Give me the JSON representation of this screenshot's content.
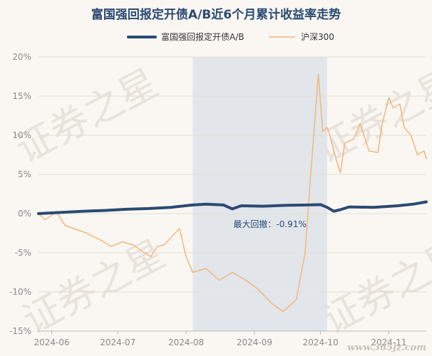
{
  "chart_data": {
    "type": "line",
    "title": "富国强回报定开债A/B近6个月累计收益率走势",
    "xlabel": "",
    "ylabel": "",
    "ylim": [
      -15,
      20
    ],
    "yticks": [
      "-15%",
      "-10%",
      "-5%",
      "0%",
      "5%",
      "10%",
      "15%",
      "20%"
    ],
    "ytick_values": [
      -15,
      -10,
      -5,
      0,
      5,
      10,
      15,
      20
    ],
    "xlim": [
      "2024-05-26",
      "2024-11-18"
    ],
    "xticks": [
      {
        "date": "2024-06-01",
        "label": "2024-06"
      },
      {
        "date": "2024-07-01",
        "label": "2024-07"
      },
      {
        "date": "2024-08-01",
        "label": "2024-08"
      },
      {
        "date": "2024-09-01",
        "label": "2024-09"
      },
      {
        "date": "2024-10-01",
        "label": "2024-10"
      },
      {
        "date": "2024-11-01",
        "label": "2024-11"
      }
    ],
    "grid": "horizontal",
    "legend_placement": "top",
    "shaded_region": {
      "start": "2024-08-04",
      "end": "2024-10-04",
      "label": "最大回撤：-0.91%"
    },
    "series": [
      {
        "name": "富国强回报定开债A/B",
        "color": "#2b4a73",
        "points": [
          [
            "2024-05-26",
            0.0
          ],
          [
            "2024-06-05",
            0.15
          ],
          [
            "2024-06-15",
            0.3
          ],
          [
            "2024-06-25",
            0.4
          ],
          [
            "2024-07-05",
            0.55
          ],
          [
            "2024-07-15",
            0.65
          ],
          [
            "2024-07-25",
            0.8
          ],
          [
            "2024-08-04",
            1.1
          ],
          [
            "2024-08-10",
            1.2
          ],
          [
            "2024-08-18",
            1.1
          ],
          [
            "2024-08-22",
            0.6
          ],
          [
            "2024-08-26",
            1.0
          ],
          [
            "2024-09-05",
            0.95
          ],
          [
            "2024-09-15",
            1.05
          ],
          [
            "2024-09-25",
            1.1
          ],
          [
            "2024-10-01",
            1.15
          ],
          [
            "2024-10-04",
            0.8
          ],
          [
            "2024-10-07",
            0.3
          ],
          [
            "2024-10-10",
            0.5
          ],
          [
            "2024-10-14",
            0.85
          ],
          [
            "2024-10-25",
            0.8
          ],
          [
            "2024-11-05",
            1.0
          ],
          [
            "2024-11-12",
            1.2
          ],
          [
            "2024-11-18",
            1.5
          ]
        ]
      },
      {
        "name": "沪深300",
        "color": "#f2b67a",
        "points": [
          [
            "2024-05-26",
            0.0
          ],
          [
            "2024-05-29",
            -0.8
          ],
          [
            "2024-06-01",
            -0.2
          ],
          [
            "2024-06-03",
            0.3
          ],
          [
            "2024-06-07",
            -1.5
          ],
          [
            "2024-06-12",
            -2.0
          ],
          [
            "2024-06-17",
            -2.5
          ],
          [
            "2024-06-24",
            -3.5
          ],
          [
            "2024-06-28",
            -4.2
          ],
          [
            "2024-07-03",
            -3.6
          ],
          [
            "2024-07-08",
            -4.0
          ],
          [
            "2024-07-12",
            -4.8
          ],
          [
            "2024-07-16",
            -5.5
          ],
          [
            "2024-07-19",
            -4.2
          ],
          [
            "2024-07-22",
            -4.0
          ],
          [
            "2024-07-26",
            -2.8
          ],
          [
            "2024-07-29",
            -1.9
          ],
          [
            "2024-08-01",
            -5.5
          ],
          [
            "2024-08-04",
            -7.5
          ],
          [
            "2024-08-10",
            -7.0
          ],
          [
            "2024-08-16",
            -8.5
          ],
          [
            "2024-08-22",
            -7.5
          ],
          [
            "2024-08-28",
            -8.5
          ],
          [
            "2024-09-02",
            -9.5
          ],
          [
            "2024-09-09",
            -11.5
          ],
          [
            "2024-09-14",
            -12.5
          ],
          [
            "2024-09-18",
            -11.5
          ],
          [
            "2024-09-20",
            -11.0
          ],
          [
            "2024-09-24",
            -5.0
          ],
          [
            "2024-09-26",
            3.0
          ],
          [
            "2024-09-30",
            17.8
          ],
          [
            "2024-10-02",
            10.5
          ],
          [
            "2024-10-04",
            11.0
          ],
          [
            "2024-10-05",
            10.2
          ],
          [
            "2024-10-08",
            7.0
          ],
          [
            "2024-10-10",
            5.2
          ],
          [
            "2024-10-12",
            9.0
          ],
          [
            "2024-10-16",
            9.5
          ],
          [
            "2024-10-19",
            11.5
          ],
          [
            "2024-10-23",
            8.0
          ],
          [
            "2024-10-27",
            7.8
          ],
          [
            "2024-10-29",
            11.5
          ],
          [
            "2024-11-01",
            14.8
          ],
          [
            "2024-11-03",
            13.5
          ],
          [
            "2024-11-06",
            14.0
          ],
          [
            "2024-11-08",
            11.0
          ],
          [
            "2024-11-11",
            10.0
          ],
          [
            "2024-11-14",
            7.5
          ],
          [
            "2024-11-17",
            8.0
          ],
          [
            "2024-11-18",
            7.0
          ]
        ]
      }
    ]
  },
  "watermark": {
    "text": "证券之星",
    "site": "www.365jz.com"
  }
}
